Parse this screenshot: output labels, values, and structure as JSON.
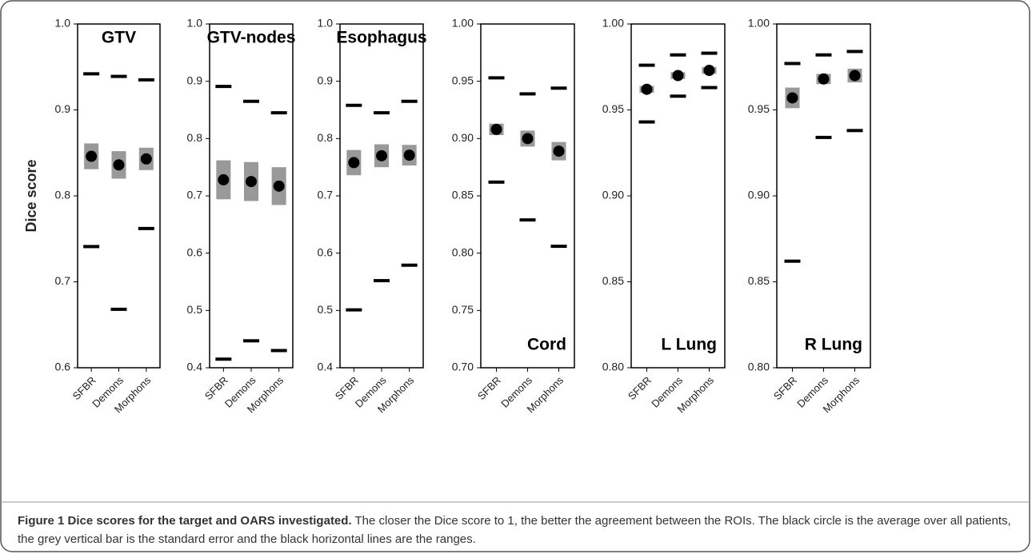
{
  "chart_data": [
    {
      "type": "range",
      "title": "GTV",
      "title_position": "top",
      "y_label": "Dice score",
      "categories": [
        "SFBR",
        "Demons",
        "Morphons"
      ],
      "mean": [
        0.846,
        0.836,
        0.843
      ],
      "se": [
        0.015,
        0.016,
        0.013
      ],
      "min": [
        0.741,
        0.668,
        0.762
      ],
      "max": [
        0.942,
        0.939,
        0.935
      ],
      "ylim": [
        0.6,
        1.0
      ],
      "yticks": [
        0.6,
        0.7,
        0.8,
        0.9,
        {
          "value": 1.0,
          "label": "1.0"
        }
      ],
      "mean_color": "#000000",
      "se_color": "#999999",
      "range_color": "#000000"
    },
    {
      "type": "range",
      "title": "GTV-nodes",
      "title_position": "top",
      "categories": [
        "SFBR",
        "Demons",
        "Morphons"
      ],
      "mean": [
        0.728,
        0.725,
        0.717
      ],
      "se": [
        0.034,
        0.034,
        0.033
      ],
      "min": [
        0.415,
        0.447,
        0.43
      ],
      "max": [
        0.891,
        0.865,
        0.845
      ],
      "ylim": [
        0.4,
        1.0
      ],
      "yticks": [
        0.4,
        0.5,
        0.6,
        0.7,
        0.8,
        0.9,
        {
          "value": 1.0,
          "label": "1.0"
        }
      ],
      "mean_color": "#000000",
      "se_color": "#999999",
      "range_color": "#000000"
    },
    {
      "type": "range",
      "title": "Esophagus",
      "title_position": "top",
      "categories": [
        "SFBR",
        "Demons",
        "Morphons"
      ],
      "mean": [
        0.758,
        0.77,
        0.771
      ],
      "se": [
        0.022,
        0.02,
        0.018
      ],
      "min": [
        0.501,
        0.552,
        0.579
      ],
      "max": [
        0.858,
        0.845,
        0.865
      ],
      "ylim": [
        0.4,
        1.0
      ],
      "yticks": [
        0.4,
        0.5,
        0.6,
        0.7,
        0.8,
        0.9,
        {
          "value": 1.0,
          "label": "1.0"
        }
      ],
      "mean_color": "#000000",
      "se_color": "#999999",
      "range_color": "#000000"
    },
    {
      "type": "range",
      "title": "Cord",
      "title_position": "bottom",
      "categories": [
        "SFBR",
        "Demons",
        "Morphons"
      ],
      "mean": [
        0.908,
        0.9,
        0.889
      ],
      "se": [
        0.005,
        0.007,
        0.008
      ],
      "min": [
        0.862,
        0.829,
        0.806
      ],
      "max": [
        0.953,
        0.939,
        0.944
      ],
      "ylim": [
        0.7,
        1.0
      ],
      "yticks": [
        {
          "value": 0.7,
          "label": "0.70"
        },
        0.75,
        {
          "value": 0.8,
          "label": "0.80"
        },
        0.85,
        {
          "value": 0.9,
          "label": "0.90"
        },
        0.95,
        {
          "value": 1.0,
          "label": "1.00"
        }
      ],
      "mean_color": "#000000",
      "se_color": "#999999",
      "range_color": "#000000"
    },
    {
      "type": "range",
      "title": "L Lung",
      "title_position": "bottom",
      "categories": [
        "SFBR",
        "Demons",
        "Morphons"
      ],
      "mean": [
        0.962,
        0.97,
        0.973
      ],
      "se": [
        0.002,
        0.002,
        0.002
      ],
      "min": [
        0.943,
        0.958,
        0.963
      ],
      "max": [
        0.976,
        0.982,
        0.983
      ],
      "ylim": [
        0.8,
        1.0
      ],
      "yticks": [
        {
          "value": 0.8,
          "label": "0.80"
        },
        0.85,
        {
          "value": 0.9,
          "label": "0.90"
        },
        0.95,
        {
          "value": 1.0,
          "label": "1.00"
        }
      ],
      "mean_color": "#000000",
      "se_color": "#999999",
      "range_color": "#000000"
    },
    {
      "type": "range",
      "title": "R Lung",
      "title_position": "bottom",
      "categories": [
        "SFBR",
        "Demons",
        "Morphons"
      ],
      "mean": [
        0.957,
        0.968,
        0.97
      ],
      "se": [
        0.006,
        0.003,
        0.004
      ],
      "min": [
        0.862,
        0.934,
        0.938
      ],
      "max": [
        0.977,
        0.982,
        0.984
      ],
      "ylim": [
        0.8,
        1.0
      ],
      "yticks": [
        {
          "value": 0.8,
          "label": "0.80"
        },
        0.85,
        {
          "value": 0.9,
          "label": "0.90"
        },
        0.95,
        {
          "value": 1.0,
          "label": "1.00"
        }
      ],
      "mean_color": "#000000",
      "se_color": "#999999",
      "range_color": "#000000"
    }
  ],
  "caption": {
    "title": "Figure 1 Dice scores for the target and OARS investigated.",
    "text": "The closer the Dice score to 1, the better the agreement between the ROIs. The black circle is the average over all patients, the grey vertical bar is the standard error and the black horizontal lines are the ranges."
  }
}
